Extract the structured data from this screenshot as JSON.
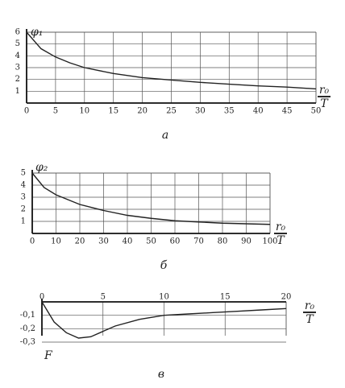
{
  "chart_data": [
    {
      "type": "line",
      "y_label": "φ₁",
      "x_label_num": "r₀",
      "x_label_den": "T",
      "caption": "а",
      "x": [
        0,
        2.5,
        5,
        7.5,
        10,
        15,
        20,
        25,
        30,
        35,
        40,
        45,
        50
      ],
      "values": [
        6.0,
        4.6,
        3.9,
        3.4,
        3.0,
        2.5,
        2.15,
        1.95,
        1.75,
        1.6,
        1.45,
        1.35,
        1.2
      ],
      "color": "#222",
      "xlim": [
        0,
        50
      ],
      "xticks": [
        0,
        5,
        10,
        15,
        20,
        25,
        30,
        35,
        40,
        45,
        50
      ],
      "ylim": [
        0,
        6
      ],
      "yticks": [
        1,
        2,
        3,
        4,
        5,
        6
      ],
      "grid": true
    },
    {
      "type": "line",
      "y_label": "φ₂",
      "x_label_num": "r₀",
      "x_label_den": "T",
      "caption": "б",
      "x": [
        0,
        5,
        10,
        20,
        30,
        40,
        50,
        60,
        70,
        80,
        90,
        100
      ],
      "values": [
        5.0,
        3.8,
        3.2,
        2.4,
        1.9,
        1.5,
        1.25,
        1.05,
        0.95,
        0.85,
        0.8,
        0.75
      ],
      "color": "#222",
      "xlim": [
        0,
        100
      ],
      "xticks": [
        0,
        10,
        20,
        30,
        40,
        50,
        60,
        70,
        80,
        90,
        100
      ],
      "ylim": [
        0,
        5
      ],
      "yticks": [
        1,
        2,
        3,
        4,
        5
      ],
      "grid": true
    },
    {
      "type": "line",
      "y_label": "F",
      "x_label_num": "r₀",
      "x_label_den": "T",
      "caption": "в",
      "x": [
        0,
        1,
        2,
        3,
        4,
        5,
        6,
        8,
        10,
        12,
        14,
        16,
        18,
        20
      ],
      "values": [
        0,
        -0.15,
        -0.23,
        -0.27,
        -0.26,
        -0.22,
        -0.18,
        -0.13,
        -0.1,
        -0.09,
        -0.08,
        -0.07,
        -0.06,
        -0.05
      ],
      "color": "#222",
      "xlim": [
        0,
        20
      ],
      "xticks": [
        0,
        5,
        10,
        15,
        20
      ],
      "ylim": [
        -0.3,
        0
      ],
      "yticks": [
        {
          "value": -0.1,
          "label": "-0,1"
        },
        {
          "value": -0.2,
          "label": "-0,2"
        },
        {
          "value": -0.3,
          "label": "-0,3"
        }
      ],
      "grid": true
    }
  ]
}
